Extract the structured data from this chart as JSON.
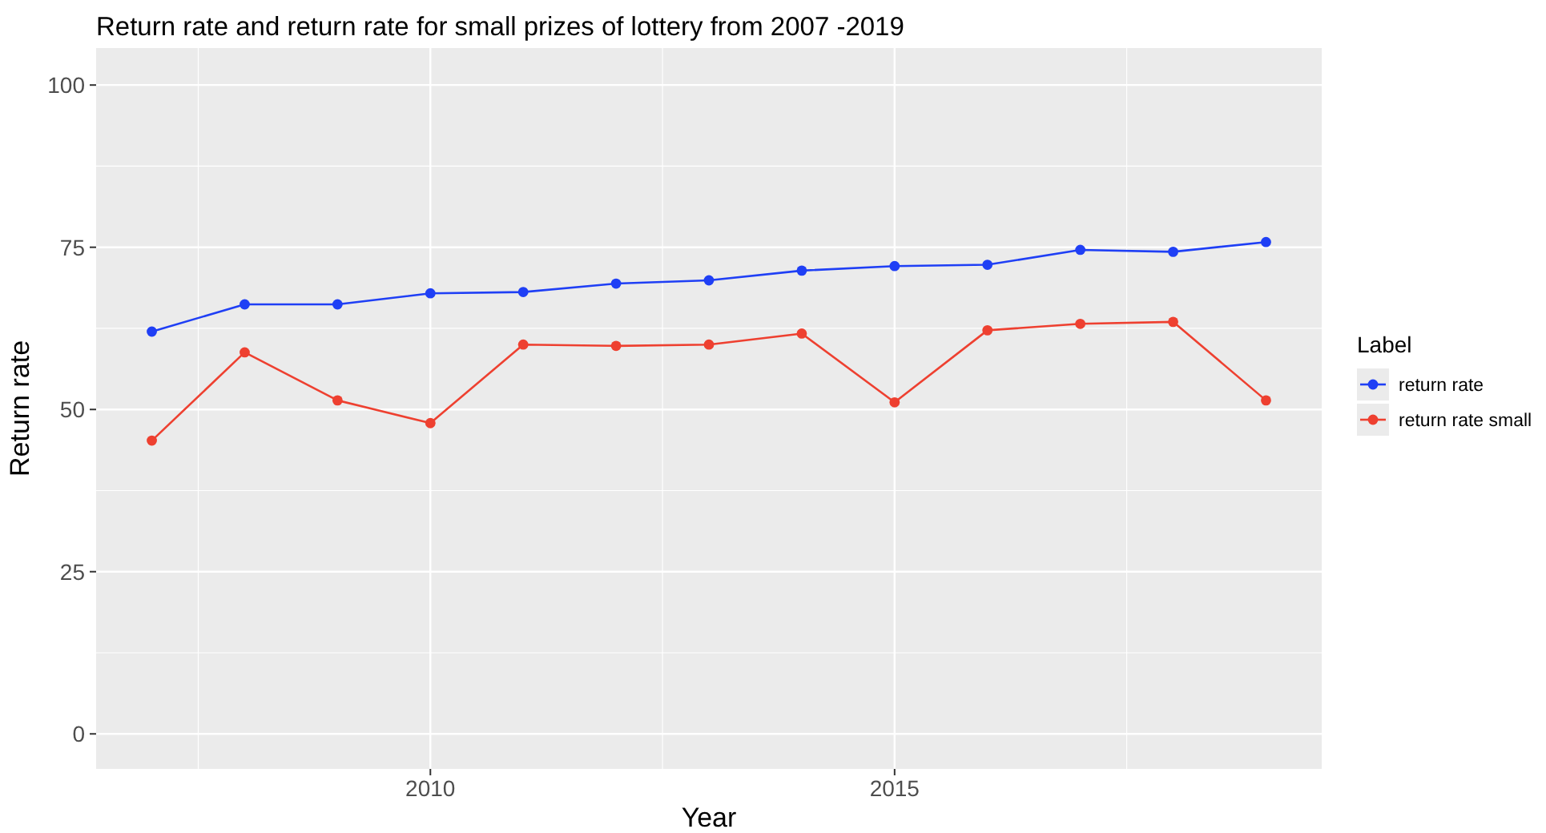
{
  "chart_data": {
    "type": "line",
    "title": "Return rate and return rate for small prizes of lottery from 2007 -2019",
    "xlabel": "Year",
    "ylabel": "Return rate",
    "legend_title": "Label",
    "x": [
      2007,
      2008,
      2009,
      2010,
      2011,
      2012,
      2013,
      2014,
      2015,
      2016,
      2017,
      2018,
      2019
    ],
    "series": [
      {
        "name": "return rate",
        "color": "#1f3ff5",
        "values": [
          62.0,
          66.2,
          66.2,
          67.9,
          68.1,
          69.4,
          69.9,
          71.4,
          72.1,
          72.3,
          74.6,
          74.3,
          75.8
        ]
      },
      {
        "name": "return rate small",
        "color": "#ee4030",
        "values": [
          45.2,
          58.8,
          51.4,
          47.9,
          60.0,
          59.8,
          60.0,
          61.7,
          51.1,
          62.2,
          63.2,
          63.5,
          51.4
        ]
      }
    ],
    "xlim": [
      2006.4,
      2019.6
    ],
    "xticks": [
      2010,
      2015
    ],
    "ylim": [
      -5.4,
      105.7
    ],
    "yticks": [
      0,
      25,
      50,
      75,
      100
    ],
    "grid": true,
    "legend": "right",
    "marker": "circle",
    "line_style": "solid"
  }
}
